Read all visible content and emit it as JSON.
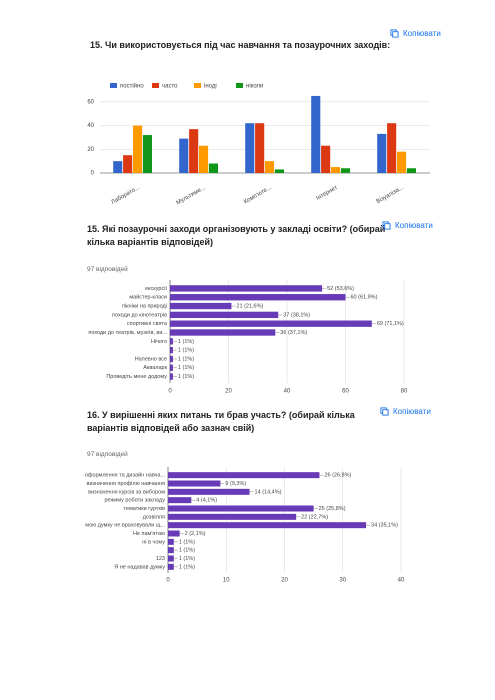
{
  "chart_data": [
    {
      "type": "bar",
      "title": "15. Чи використовується під час навчання та позаурочних заходів:",
      "copy_button": "Копіювати",
      "categories": [
        "Лаборато...",
        "Мультиме...",
        "Комп'юте...",
        "Інтернет",
        "Візуаліза..."
      ],
      "series": [
        {
          "name": "постійно",
          "color": "#3366cc",
          "values": [
            10,
            29,
            42,
            65,
            33
          ]
        },
        {
          "name": "часто",
          "color": "#dc3912",
          "values": [
            15,
            37,
            42,
            23,
            42
          ]
        },
        {
          "name": "іноді",
          "color": "#ff9900",
          "values": [
            40,
            23,
            10,
            5,
            18
          ]
        },
        {
          "name": "ніколи",
          "color": "#109618",
          "values": [
            32,
            8,
            3,
            4,
            4
          ]
        }
      ],
      "ylim": [
        0,
        70
      ],
      "yticks": [
        0,
        20,
        40,
        60
      ],
      "grid": true
    },
    {
      "type": "barh",
      "title": "15. Які позаурочні заходи організовують у закладі освіти? (обирай кілька варіантів відповідей)",
      "copy_button": "Копіювати",
      "response_count": "97 відповідей",
      "categories": [
        "екскурсії",
        "майстер-класи",
        "пікніки на природі",
        "походи до кінотеатрів",
        "спортивні свята",
        "походи до театрів, музеїв, ви...",
        "Нічого",
        null,
        "Напевно все",
        "Акваларк",
        "Проведіть мене додому"
      ],
      "values": [
        52,
        60,
        21,
        37,
        69,
        36,
        1,
        1,
        1,
        1,
        1
      ],
      "value_labels": [
        "52 (53,6%)",
        "60 (61,9%)",
        "21 (21,6%)",
        "37 (38,1%)",
        "69 (71,1%)",
        "36 (37,1%)",
        "1 (1%)",
        "1 (1%)",
        "1 (1%)",
        "1 (1%)",
        "1 (1%)"
      ],
      "color": "#673ab7",
      "xlim": [
        0,
        80
      ],
      "xticks": [
        0,
        20,
        40,
        60,
        80
      ],
      "grid": true
    },
    {
      "type": "barh",
      "title": "16. У вирішенні яких питань ти брав участь? (обирай кілька варіантів відповідей або зазнач свій)",
      "copy_button": "Копіювати",
      "response_count": "97 відповідей",
      "categories": [
        "оформлення та дизайн навча...",
        "визначення профілю навчання",
        "визначення курсів за вибором",
        "режиму роботи закладу",
        "тематики гуртків",
        "дозвілля",
        "мою думку не враховували щ...",
        "Не пам'ятаю",
        "ні в чому",
        null,
        "123",
        "Я не надавав думку"
      ],
      "values": [
        26,
        9,
        14,
        4,
        25,
        22,
        34,
        2,
        1,
        1,
        1,
        1
      ],
      "value_labels": [
        "26 (26,8%)",
        "9 (9,3%)",
        "14 (14,4%)",
        "4 (4,1%)",
        "25 (25,8%)",
        "22 (22,7%)",
        "34 (35,1%)",
        "2 (2,1%)",
        "1 (1%)",
        "1 (1%)",
        "1 (1%)",
        "1 (1%)"
      ],
      "color": "#673ab7",
      "xlim": [
        0,
        40
      ],
      "xticks": [
        0,
        10,
        20,
        30,
        40
      ],
      "grid": true
    }
  ]
}
